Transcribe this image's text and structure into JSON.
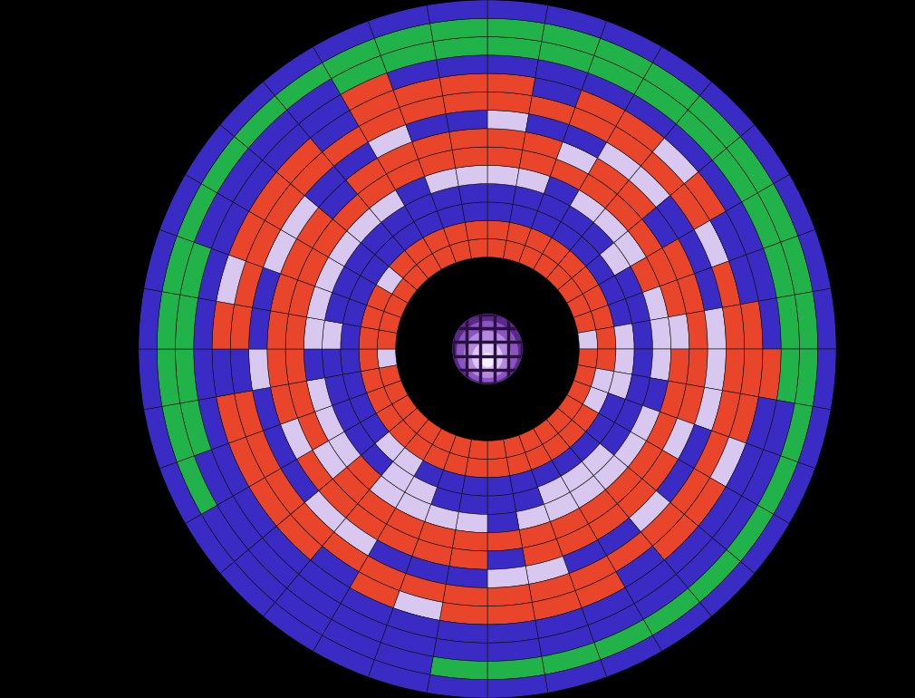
{
  "chart_data": {
    "type": "radial_heatmap",
    "tick_labels": false,
    "colors": [
      "#e8452a",
      "#3a2bc4",
      "#d8c8f0",
      "#22b24a"
    ],
    "cells": [
      [
        0,
        0,
        0,
        0,
        0,
        0,
        0,
        0,
        2,
        0,
        0,
        0,
        0,
        0,
        0,
        0,
        0,
        0,
        0,
        0,
        0,
        0,
        0,
        0,
        0,
        0,
        2,
        0,
        0,
        0,
        0,
        0,
        0,
        0,
        0,
        0
      ],
      [
        0,
        0,
        0,
        0,
        0,
        0,
        0,
        0,
        0,
        0,
        2,
        2,
        0,
        0,
        0,
        0,
        0,
        0,
        0,
        0,
        0,
        0,
        0,
        0,
        0,
        0,
        0,
        0,
        0,
        0,
        2,
        0,
        0,
        0,
        0,
        0
      ],
      [
        1,
        1,
        1,
        1,
        1,
        1,
        1,
        1,
        2,
        2,
        2,
        1,
        1,
        1,
        1,
        1,
        1,
        1,
        1,
        1,
        1,
        2,
        2,
        1,
        1,
        1,
        1,
        1,
        1,
        1,
        1,
        1,
        1,
        1,
        1,
        1
      ],
      [
        1,
        1,
        1,
        1,
        1,
        2,
        1,
        1,
        1,
        1,
        1,
        1,
        1,
        2,
        2,
        2,
        1,
        1,
        1,
        1,
        2,
        2,
        1,
        1,
        1,
        1,
        1,
        2,
        1,
        1,
        1,
        1,
        1,
        1,
        1,
        1
      ],
      [
        2,
        2,
        1,
        2,
        2,
        2,
        0,
        2,
        2,
        2,
        1,
        2,
        2,
        2,
        2,
        2,
        2,
        1,
        2,
        2,
        2,
        2,
        0,
        2,
        2,
        2,
        1,
        2,
        2,
        2,
        2,
        2,
        2,
        1,
        2,
        2
      ],
      [
        0,
        0,
        0,
        0,
        0,
        0,
        0,
        0,
        2,
        0,
        0,
        0,
        0,
        0,
        0,
        0,
        0,
        0,
        0,
        0,
        0,
        0,
        0,
        2,
        0,
        0,
        0,
        0,
        0,
        0,
        0,
        0,
        0,
        0,
        0,
        0
      ],
      [
        0,
        0,
        2,
        0,
        0,
        1,
        0,
        0,
        0,
        0,
        0,
        2,
        0,
        0,
        0,
        0,
        0,
        1,
        0,
        0,
        0,
        0,
        0,
        0,
        2,
        0,
        0,
        0,
        0,
        0,
        0,
        1,
        0,
        0,
        0,
        0
      ],
      [
        2,
        1,
        1,
        2,
        2,
        1,
        1,
        1,
        2,
        2,
        2,
        1,
        1,
        2,
        1,
        1,
        2,
        2,
        1,
        1,
        1,
        2,
        2,
        1,
        1,
        1,
        2,
        1,
        1,
        2,
        2,
        1,
        1,
        2,
        1,
        1
      ],
      [
        0,
        0,
        0,
        0,
        0,
        0,
        2,
        0,
        0,
        0,
        0,
        0,
        0,
        0,
        0,
        0,
        0,
        0,
        0,
        0,
        0,
        0,
        0,
        0,
        0,
        0,
        1,
        0,
        0,
        0,
        0,
        0,
        0,
        0,
        0,
        0
      ],
      [
        0,
        1,
        0,
        0,
        2,
        0,
        1,
        1,
        0,
        0,
        0,
        2,
        0,
        0,
        1,
        0,
        0,
        0,
        0,
        2,
        0,
        1,
        0,
        0,
        0,
        0,
        1,
        0,
        2,
        0,
        0,
        0,
        1,
        0,
        0,
        0
      ],
      [
        1,
        1,
        1,
        1,
        1,
        1,
        1,
        1,
        1,
        0,
        1,
        1,
        1,
        1,
        1,
        1,
        1,
        1,
        1,
        1,
        1,
        1,
        1,
        1,
        1,
        1,
        1,
        1,
        1,
        1,
        1,
        1,
        1,
        0,
        1,
        1
      ],
      [
        3,
        3,
        3,
        3,
        3,
        3,
        3,
        3,
        3,
        3,
        1,
        1,
        1,
        1,
        1,
        1,
        1,
        1,
        1,
        1,
        1,
        1,
        1,
        1,
        1,
        3,
        3,
        3,
        3,
        1,
        1,
        1,
        1,
        3,
        3,
        3
      ],
      [
        3,
        3,
        3,
        3,
        3,
        3,
        3,
        3,
        3,
        3,
        3,
        3,
        3,
        3,
        3,
        3,
        3,
        3,
        3,
        1,
        1,
        1,
        1,
        1,
        3,
        3,
        3,
        3,
        3,
        3,
        3,
        3,
        3,
        3,
        3,
        3
      ],
      [
        1,
        1,
        1,
        1,
        1,
        1,
        1,
        1,
        1,
        1,
        1,
        1,
        1,
        1,
        1,
        1,
        1,
        1,
        1,
        1,
        1,
        1,
        1,
        1,
        1,
        1,
        1,
        1,
        1,
        1,
        1,
        1,
        1,
        1,
        1,
        1
      ]
    ]
  }
}
